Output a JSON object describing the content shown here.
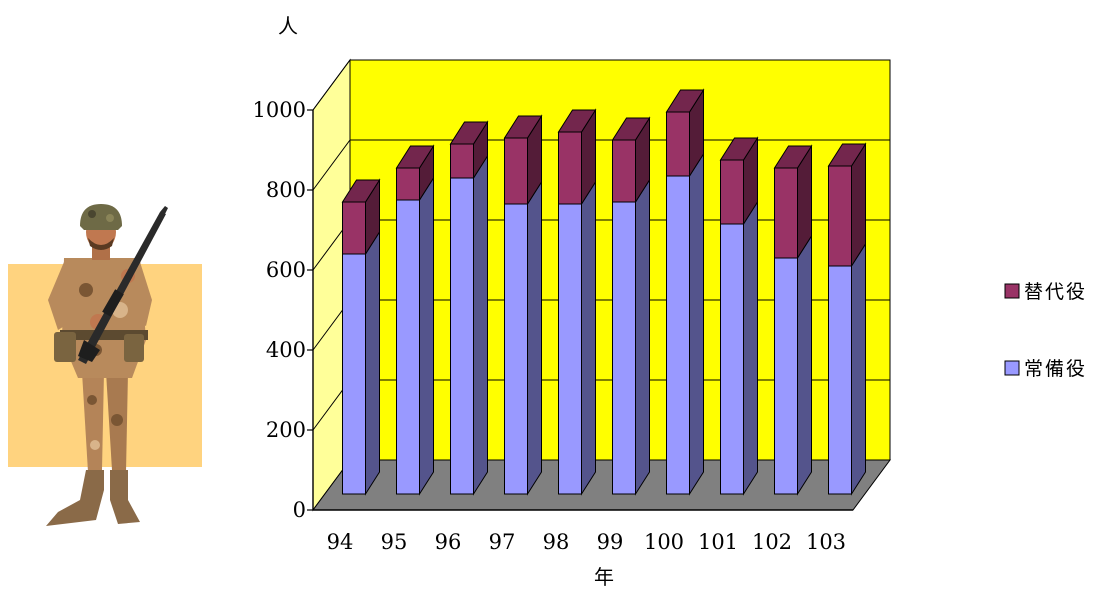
{
  "chart_data": {
    "type": "bar",
    "stacked": true,
    "three_d": true,
    "categories": [
      "94",
      "95",
      "96",
      "97",
      "98",
      "99",
      "100",
      "101",
      "102",
      "103"
    ],
    "series": [
      {
        "name": "常備役",
        "values": [
          600,
          735,
          790,
          725,
          725,
          730,
          795,
          675,
          590,
          570
        ],
        "color": "#9999FF"
      },
      {
        "name": "替代役",
        "values": [
          130,
          80,
          85,
          165,
          180,
          155,
          160,
          160,
          225,
          250
        ],
        "color": "#993366"
      }
    ],
    "xlabel": "年",
    "ylabel": "人",
    "ylim": [
      0,
      1000
    ],
    "yticks": [
      0,
      200,
      400,
      600,
      800,
      1000
    ],
    "grid": true,
    "legend_position": "right",
    "colors": {
      "back_wall": "#FFFF00",
      "side_wall": "#FFFF99",
      "floor": "#808080"
    }
  },
  "illustration": {
    "subject": "soldier-with-rifle",
    "backdrop_color": "#FFD37F"
  }
}
